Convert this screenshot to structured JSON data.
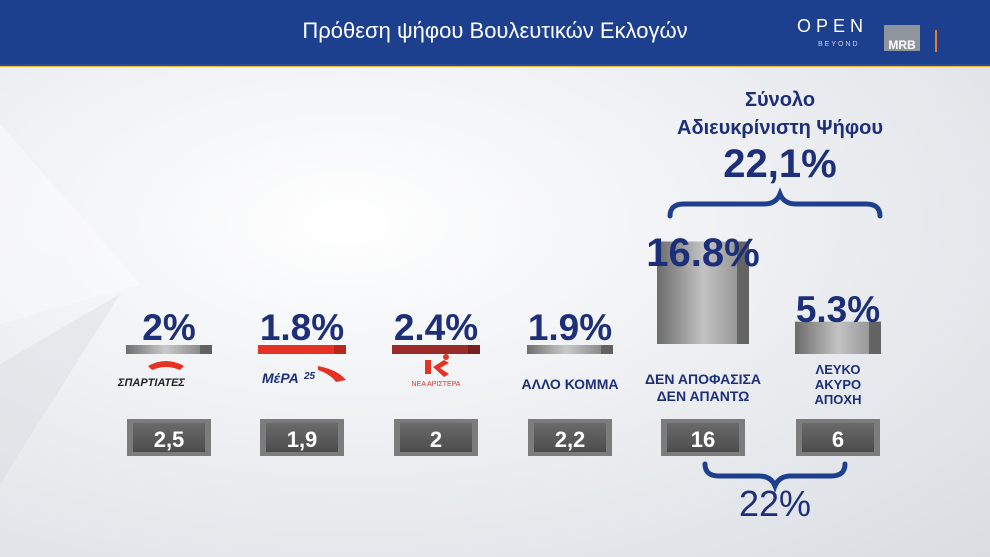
{
  "header": {
    "title": "Πρόθεση ψήφου Βουλευτικών Εκλογών",
    "logo_open": "OPEN",
    "logo_beyond": "BEYOND",
    "logo_mrb": "MRB"
  },
  "colors": {
    "header_bg": "#1c3f8e",
    "text_blue": "#1d2f78",
    "bar_gray": "#8e8e8e",
    "bar_red": "#e53224",
    "bar_darkred": "#9b2b2b",
    "box_gray": "#5a5a5a",
    "accent_orange": "#e77d2a"
  },
  "chart_data": {
    "type": "bar",
    "categories": [
      "ΣΠΑΡΤΙΑΤΕΣ",
      "ΜέΡΑ25",
      "ΝΕΑ ΑΡΙΣΤΕΡΑ",
      "ΑΛΛΟ ΚΟΜΜΑ",
      "ΔΕΝ ΑΠΟΦΑΣΙΣΑ ΔΕΝ ΑΠΑΝΤΩ",
      "ΛΕΥΚΟ ΑΚΥΡΟ ΑΠΟΧΗ"
    ],
    "values": [
      2,
      1.8,
      2.4,
      1.9,
      16.8,
      5.3
    ],
    "value_labels": [
      "2%",
      "1.8%",
      "2.4%",
      "1.9%",
      "16.8%",
      "5.3%"
    ],
    "previous_values": [
      "2,5",
      "1,9",
      "2",
      "2,2",
      "16",
      "6"
    ],
    "bar_colors": [
      "#8e8e8e",
      "#e53224",
      "#9b2b2b",
      "#9a9a9a",
      "#8e8e8e",
      "#8e8e8e"
    ],
    "category_text": {
      "spartiates": "ΣΠΑΡΤΙΑΤΕΣ",
      "mera25": "ΜέΡΑ",
      "mera25_num": "25",
      "nea_aristera": "ΝΕΑ ΑΡΙΣΤΕΡΑ",
      "allo_komma": "ΑΛΛΟ ΚΟΜΜΑ",
      "den_line1": "ΔΕΝ ΑΠΟΦΑΣΙΣΑ",
      "den_line2": "ΔΕΝ ΑΠΑΝΤΩ",
      "lefko_line1": "ΛΕΥΚΟ",
      "lefko_line2": "ΑΚΥΡΟ",
      "lefko_line3": "ΑΠΟΧΗ"
    },
    "annotations": {
      "total_title_line1": "Σύνολο",
      "total_title_line2": "Αδιευκρίνιστη Ψήφου",
      "total_value": "22,1%",
      "previous_total": "22%"
    }
  }
}
